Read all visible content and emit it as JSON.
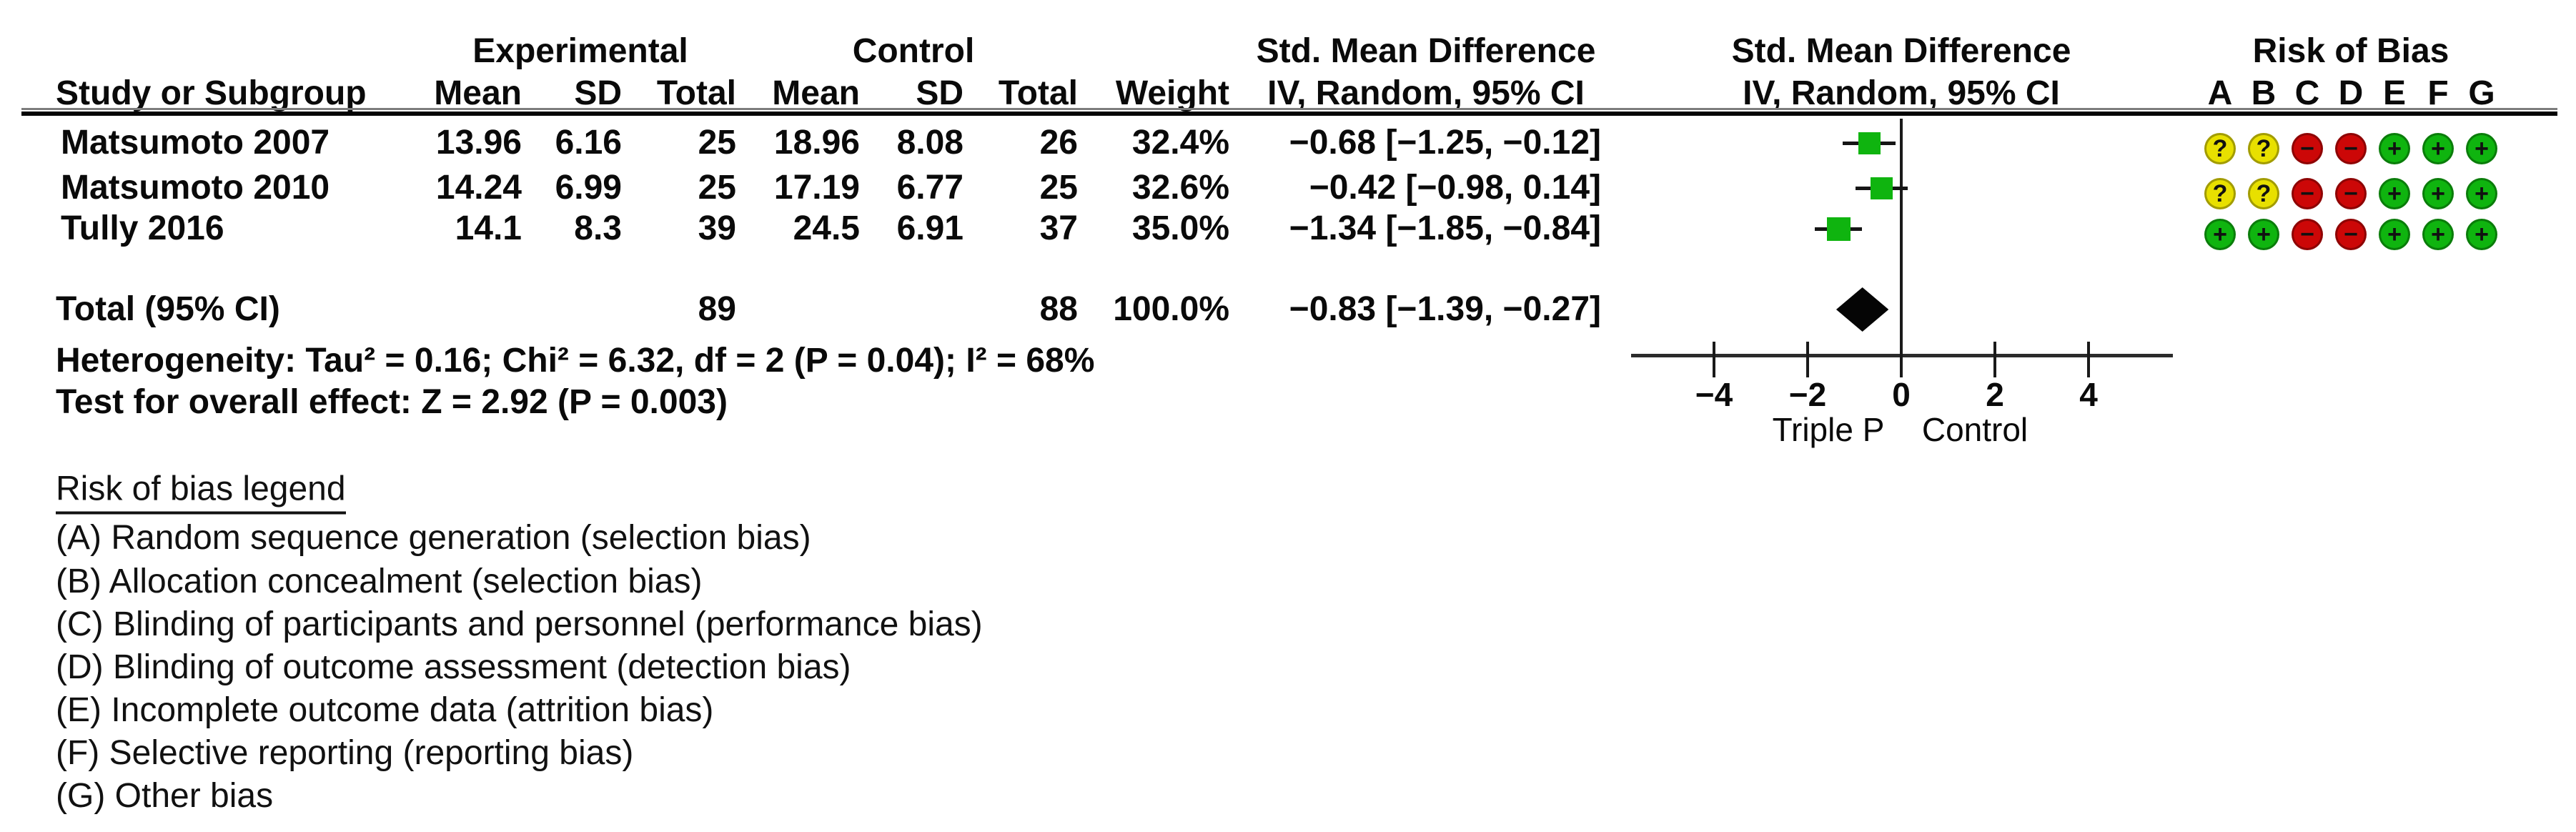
{
  "header": {
    "group": {
      "experimental": "Experimental",
      "control": "Control",
      "smd_text": "Std. Mean Difference",
      "smd_plot": "Std. Mean Difference",
      "risk_of_bias": "Risk of Bias"
    },
    "sub": {
      "study": "Study or Subgroup",
      "mean": "Mean",
      "sd": "SD",
      "total": "Total",
      "weight": "Weight",
      "iv_text": "IV, Random, 95% CI",
      "iv_plot": "IV, Random, 95% CI"
    },
    "rob_letters": [
      "A",
      "B",
      "C",
      "D",
      "E",
      "F",
      "G"
    ]
  },
  "rows": [
    {
      "study": "Matsumoto 2007",
      "exp_mean": "13.96",
      "exp_sd": "6.16",
      "exp_total": "25",
      "ctrl_mean": "18.96",
      "ctrl_sd": "8.08",
      "ctrl_total": "26",
      "weight": "32.4%",
      "ci_text": "−0.68 [−1.25, −0.12]",
      "smd": -0.68,
      "ci_low": -1.25,
      "ci_high": -0.12,
      "rob": [
        "?",
        "?",
        "−",
        "−",
        "+",
        "+",
        "+"
      ]
    },
    {
      "study": "Matsumoto 2010",
      "exp_mean": "14.24",
      "exp_sd": "6.99",
      "exp_total": "25",
      "ctrl_mean": "17.19",
      "ctrl_sd": "6.77",
      "ctrl_total": "25",
      "weight": "32.6%",
      "ci_text": "−0.42 [−0.98, 0.14]",
      "smd": -0.42,
      "ci_low": -0.98,
      "ci_high": 0.14,
      "rob": [
        "?",
        "?",
        "−",
        "−",
        "+",
        "+",
        "+"
      ]
    },
    {
      "study": "Tully 2016",
      "exp_mean": "14.1",
      "exp_sd": "8.3",
      "exp_total": "39",
      "ctrl_mean": "24.5",
      "ctrl_sd": "6.91",
      "ctrl_total": "37",
      "weight": "35.0%",
      "ci_text": "−1.34 [−1.85, −0.84]",
      "smd": -1.34,
      "ci_low": -1.85,
      "ci_high": -0.84,
      "rob": [
        "+",
        "+",
        "−",
        "−",
        "+",
        "+",
        "+"
      ]
    }
  ],
  "total": {
    "label": "Total (95% CI)",
    "exp_total": "89",
    "ctrl_total": "88",
    "weight": "100.0%",
    "ci_text": "−0.83 [−1.39, −0.27]",
    "smd": -0.83,
    "ci_low": -1.39,
    "ci_high": -0.27
  },
  "footnotes": {
    "heterogeneity": "Heterogeneity: Tau² = 0.16; Chi² = 6.32, df = 2 (P = 0.04); I² = 68%",
    "overall": "Test for overall effect: Z = 2.92 (P = 0.003)"
  },
  "plot": {
    "ticks": [
      {
        "v": -4,
        "label": "−4"
      },
      {
        "v": -2,
        "label": "−2"
      },
      {
        "v": 0,
        "label": "0"
      },
      {
        "v": 2,
        "label": "2"
      },
      {
        "v": 4,
        "label": "4"
      }
    ],
    "xlabel_left": "Triple P",
    "xlabel_right": "Control"
  },
  "legend": {
    "title": "Risk of bias legend",
    "items": [
      "(A) Random sequence generation (selection bias)",
      "(B) Allocation concealment (selection bias)",
      "(C) Blinding of participants and personnel (performance bias)",
      "(D) Blinding of outcome assessment (detection bias)",
      "(E) Incomplete outcome data (attrition bias)",
      "(F) Selective reporting (reporting bias)",
      "(G) Other bias"
    ]
  },
  "colors": {
    "low": "#0fb40f",
    "high": "#cc0707",
    "unclear": "#e8e000",
    "marker": "#0fb40f",
    "diamond": "#050505"
  },
  "chart_data": {
    "type": "forest",
    "title": "Std. Mean Difference, IV, Random, 95% CI",
    "studies": [
      {
        "name": "Matsumoto 2007",
        "exp": {
          "mean": 13.96,
          "sd": 6.16,
          "n": 25
        },
        "ctrl": {
          "mean": 18.96,
          "sd": 8.08,
          "n": 26
        },
        "weight_pct": 32.4,
        "smd": -0.68,
        "ci": [
          -1.25,
          -0.12
        ],
        "risk_of_bias": {
          "A": "unclear",
          "B": "unclear",
          "C": "high",
          "D": "high",
          "E": "low",
          "F": "low",
          "G": "low"
        }
      },
      {
        "name": "Matsumoto 2010",
        "exp": {
          "mean": 14.24,
          "sd": 6.99,
          "n": 25
        },
        "ctrl": {
          "mean": 17.19,
          "sd": 6.77,
          "n": 25
        },
        "weight_pct": 32.6,
        "smd": -0.42,
        "ci": [
          -0.98,
          0.14
        ],
        "risk_of_bias": {
          "A": "unclear",
          "B": "unclear",
          "C": "high",
          "D": "high",
          "E": "low",
          "F": "low",
          "G": "low"
        }
      },
      {
        "name": "Tully 2016",
        "exp": {
          "mean": 14.1,
          "sd": 8.3,
          "n": 39
        },
        "ctrl": {
          "mean": 24.5,
          "sd": 6.91,
          "n": 37
        },
        "weight_pct": 35.0,
        "smd": -1.34,
        "ci": [
          -1.85,
          -0.84
        ],
        "risk_of_bias": {
          "A": "low",
          "B": "low",
          "C": "high",
          "D": "high",
          "E": "low",
          "F": "low",
          "G": "low"
        }
      }
    ],
    "total": {
      "n_exp": 89,
      "n_ctrl": 88,
      "weight_pct": 100.0,
      "smd": -0.83,
      "ci": [
        -1.39,
        -0.27
      ]
    },
    "heterogeneity": {
      "tau2": 0.16,
      "chi2": 6.32,
      "df": 2,
      "p": 0.04,
      "i2_pct": 68
    },
    "overall_effect": {
      "z": 2.92,
      "p": 0.003
    },
    "x_axis": {
      "ticks": [
        -4,
        -2,
        0,
        2,
        4
      ],
      "range_shown": [
        -5.8,
        5.8
      ],
      "label_left_of_zero": "Triple P",
      "label_right_of_zero": "Control"
    }
  }
}
